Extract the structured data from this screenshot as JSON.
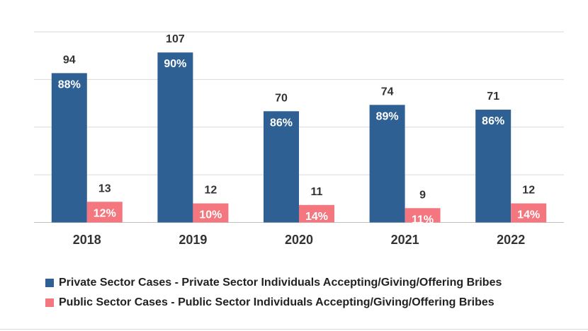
{
  "chart_data": {
    "type": "bar",
    "categories": [
      "2018",
      "2019",
      "2020",
      "2021",
      "2022"
    ],
    "series": [
      {
        "name": "Private Sector Cases - Private Sector Individuals Accepting/Giving/Offering Bribes",
        "values": [
          94,
          107,
          70,
          74,
          71
        ],
        "percent_labels": [
          "88%",
          "90%",
          "86%",
          "89%",
          "86%"
        ],
        "color": "#2e6094"
      },
      {
        "name": "Public Sector Cases - Public Sector Individuals Accepting/Giving/Offering Bribes",
        "values": [
          13,
          12,
          11,
          9,
          12
        ],
        "percent_labels": [
          "12%",
          "10%",
          "14%",
          "11%",
          "14%"
        ],
        "color": "#f4777f"
      }
    ],
    "ylim": [
      0,
      120
    ],
    "grid": true,
    "legend_position": "bottom"
  }
}
